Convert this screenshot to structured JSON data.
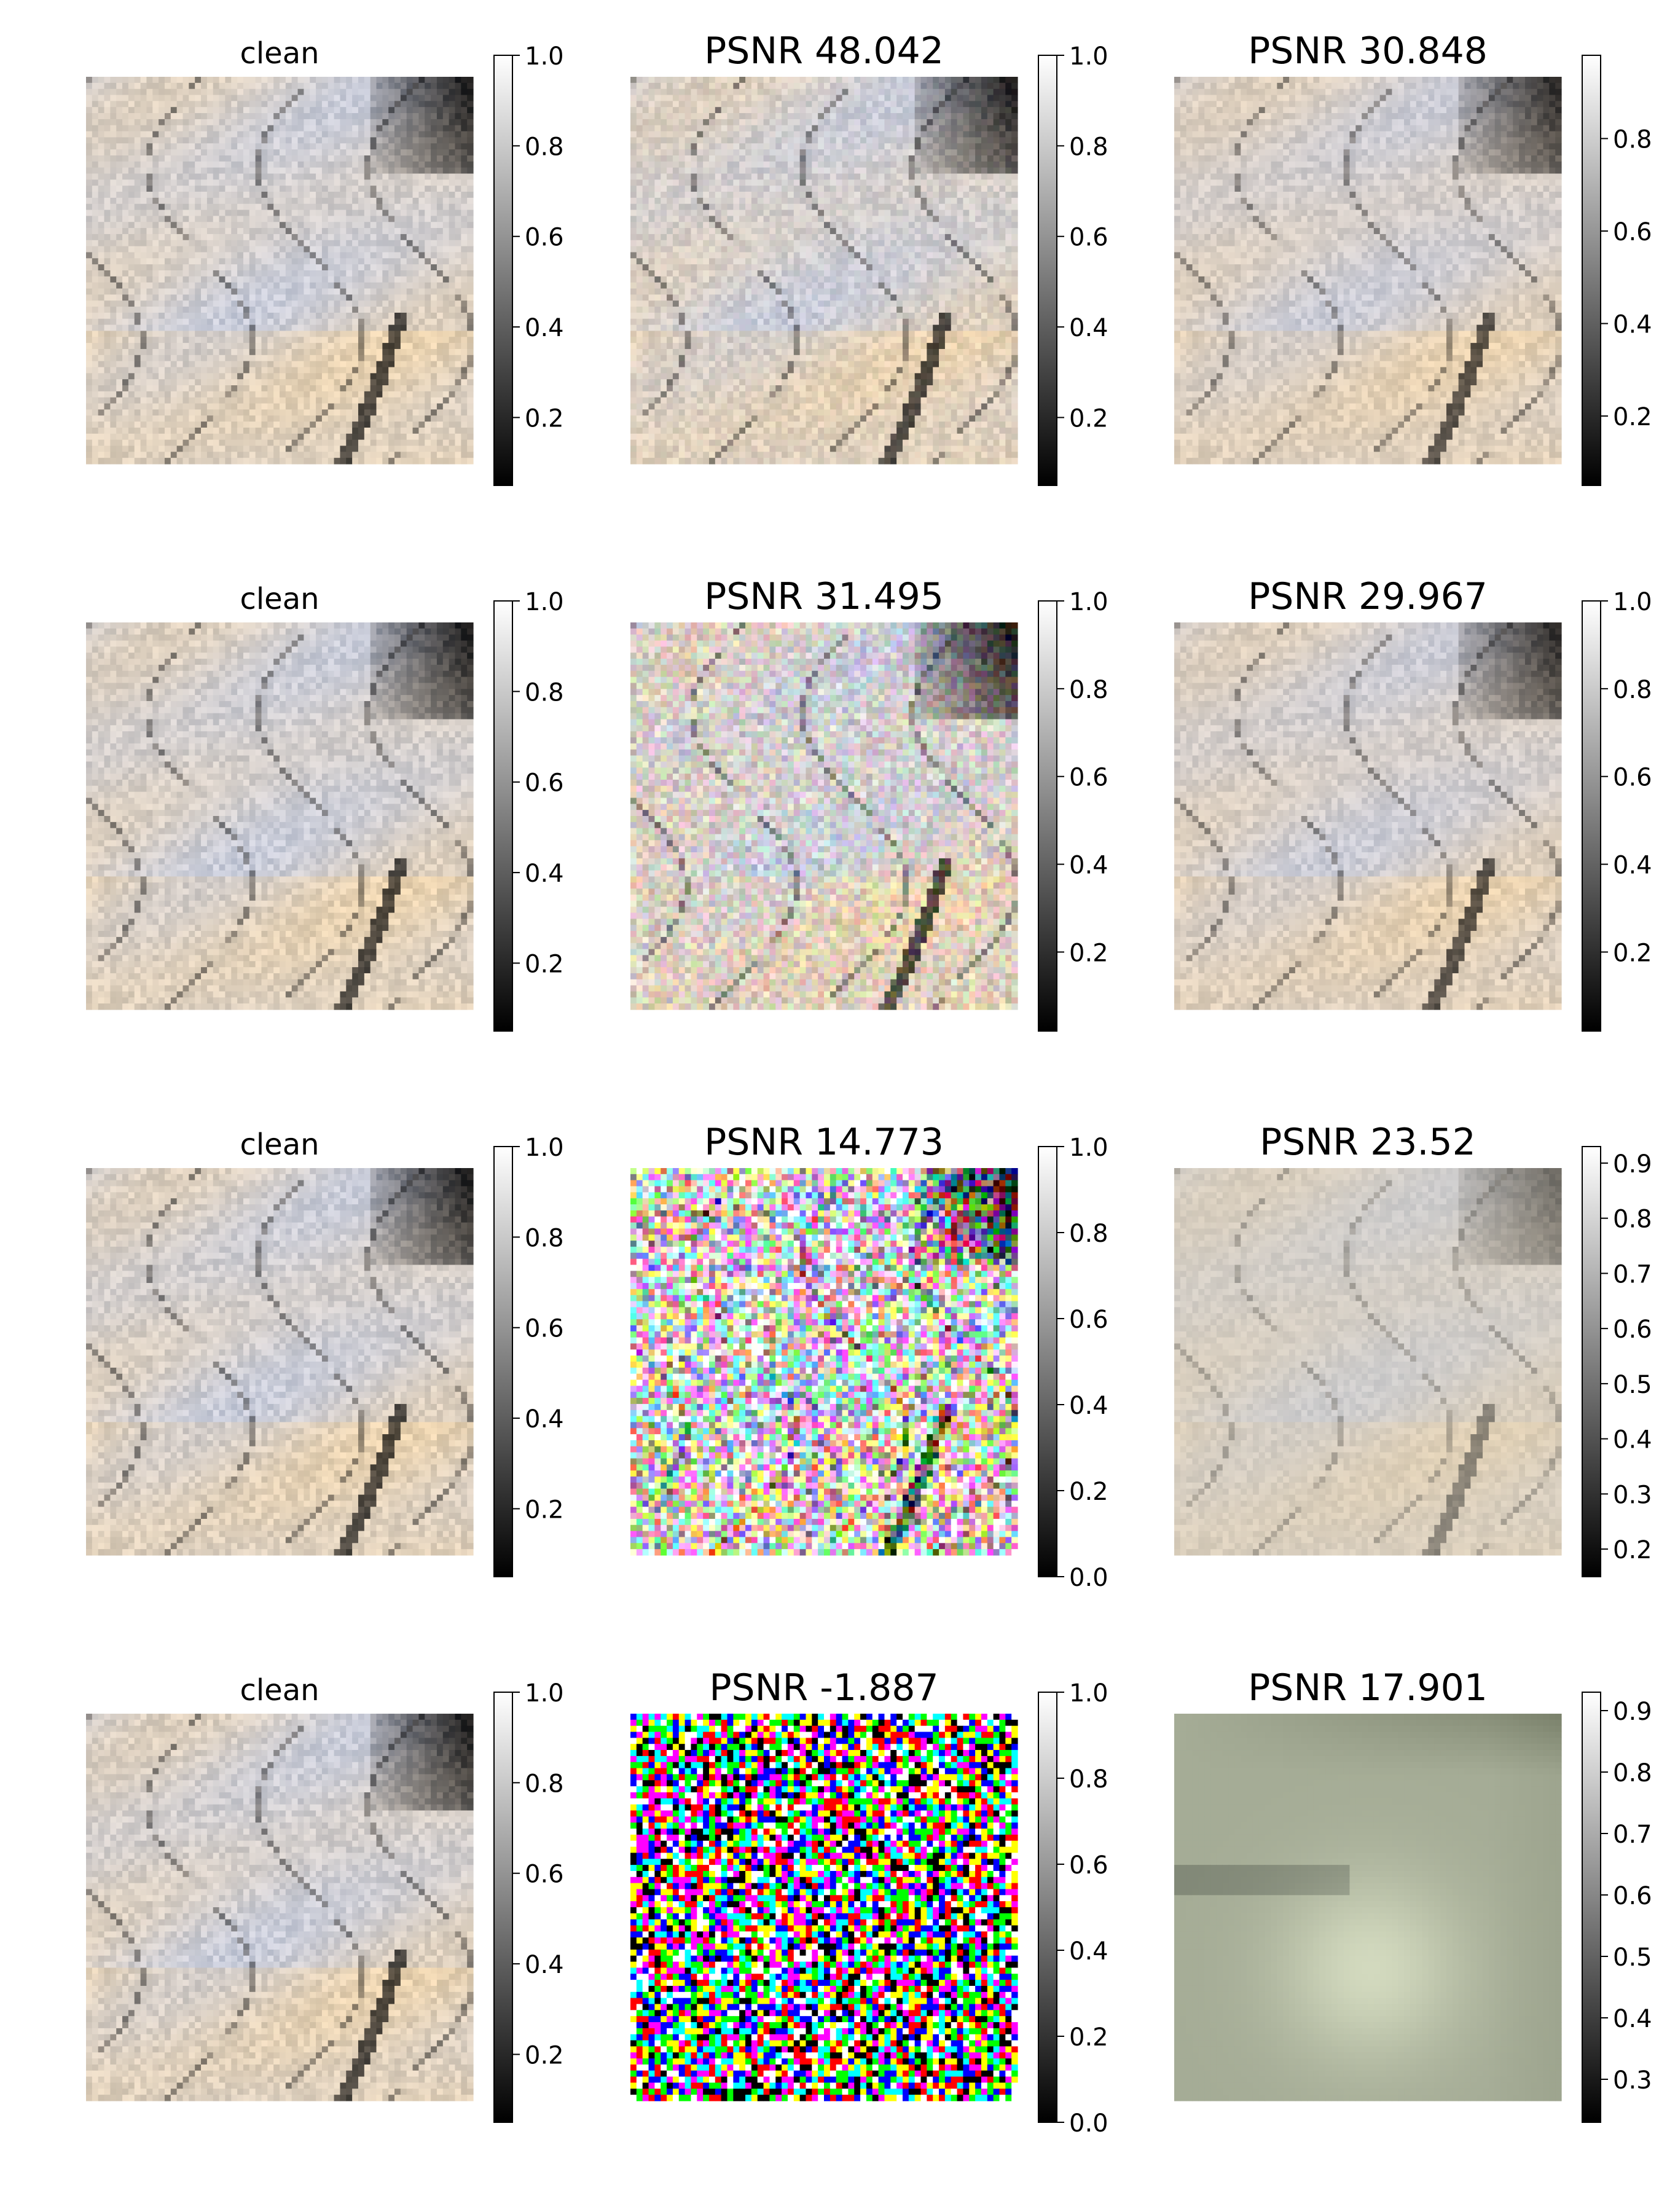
{
  "figure": {
    "rows": [
      {
        "panels": [
          {
            "title": "clean",
            "image": "clean-rock-texture",
            "colorbar": {
              "ticks": [
                "1.0",
                "0.8",
                "0.6",
                "0.4",
                "0.2"
              ],
              "range": [
                0.05,
                1.0
              ]
            }
          },
          {
            "title": "PSNR 48.042",
            "image": "near-clean-rock-texture",
            "colorbar": {
              "ticks": [
                "1.0",
                "0.8",
                "0.6",
                "0.4",
                "0.2"
              ],
              "range": [
                0.05,
                1.0
              ]
            }
          },
          {
            "title": "PSNR 30.848",
            "image": "denoised-rock-texture",
            "colorbar": {
              "ticks": [
                "0.8",
                "0.6",
                "0.4",
                "0.2"
              ],
              "range": [
                0.05,
                0.98
              ]
            }
          }
        ]
      },
      {
        "panels": [
          {
            "title": "clean",
            "image": "clean-rock-texture",
            "colorbar": {
              "ticks": [
                "1.0",
                "0.8",
                "0.6",
                "0.4",
                "0.2"
              ],
              "range": [
                0.05,
                1.0
              ]
            }
          },
          {
            "title": "PSNR 31.495",
            "image": "light-noise-rock-texture",
            "colorbar": {
              "ticks": [
                "1.0",
                "0.8",
                "0.6",
                "0.4",
                "0.2"
              ],
              "range": [
                0.02,
                1.0
              ]
            }
          },
          {
            "title": "PSNR 29.967",
            "image": "denoised-rock-texture",
            "colorbar": {
              "ticks": [
                "1.0",
                "0.8",
                "0.6",
                "0.4",
                "0.2"
              ],
              "range": [
                0.02,
                1.0
              ]
            }
          }
        ]
      },
      {
        "panels": [
          {
            "title": "clean",
            "image": "clean-rock-texture",
            "colorbar": {
              "ticks": [
                "1.0",
                "0.8",
                "0.6",
                "0.4",
                "0.2"
              ],
              "range": [
                0.05,
                1.0
              ]
            }
          },
          {
            "title": "PSNR 14.773",
            "image": "heavy-noise-rock-texture",
            "colorbar": {
              "ticks": [
                "1.0",
                "0.8",
                "0.6",
                "0.4",
                "0.2",
                "0.0"
              ],
              "range": [
                0.0,
                1.0
              ]
            }
          },
          {
            "title": "PSNR 23.52",
            "image": "smoothed-rock-texture",
            "colorbar": {
              "ticks": [
                "0.9",
                "0.8",
                "0.7",
                "0.6",
                "0.5",
                "0.4",
                "0.3",
                "0.2"
              ],
              "range": [
                0.15,
                0.93
              ]
            }
          }
        ]
      },
      {
        "panels": [
          {
            "title": "clean",
            "image": "clean-rock-texture",
            "colorbar": {
              "ticks": [
                "1.0",
                "0.8",
                "0.6",
                "0.4",
                "0.2"
              ],
              "range": [
                0.05,
                1.0
              ]
            }
          },
          {
            "title": "PSNR -1.887",
            "image": "pure-noise",
            "colorbar": {
              "ticks": [
                "1.0",
                "0.8",
                "0.6",
                "0.4",
                "0.2",
                "0.0"
              ],
              "range": [
                0.0,
                1.0
              ]
            }
          },
          {
            "title": "PSNR 17.901",
            "image": "blurred-rock-texture",
            "colorbar": {
              "ticks": [
                "0.9",
                "0.8",
                "0.7",
                "0.6",
                "0.5",
                "0.4",
                "0.3"
              ],
              "range": [
                0.23,
                0.93
              ]
            }
          }
        ]
      }
    ]
  }
}
